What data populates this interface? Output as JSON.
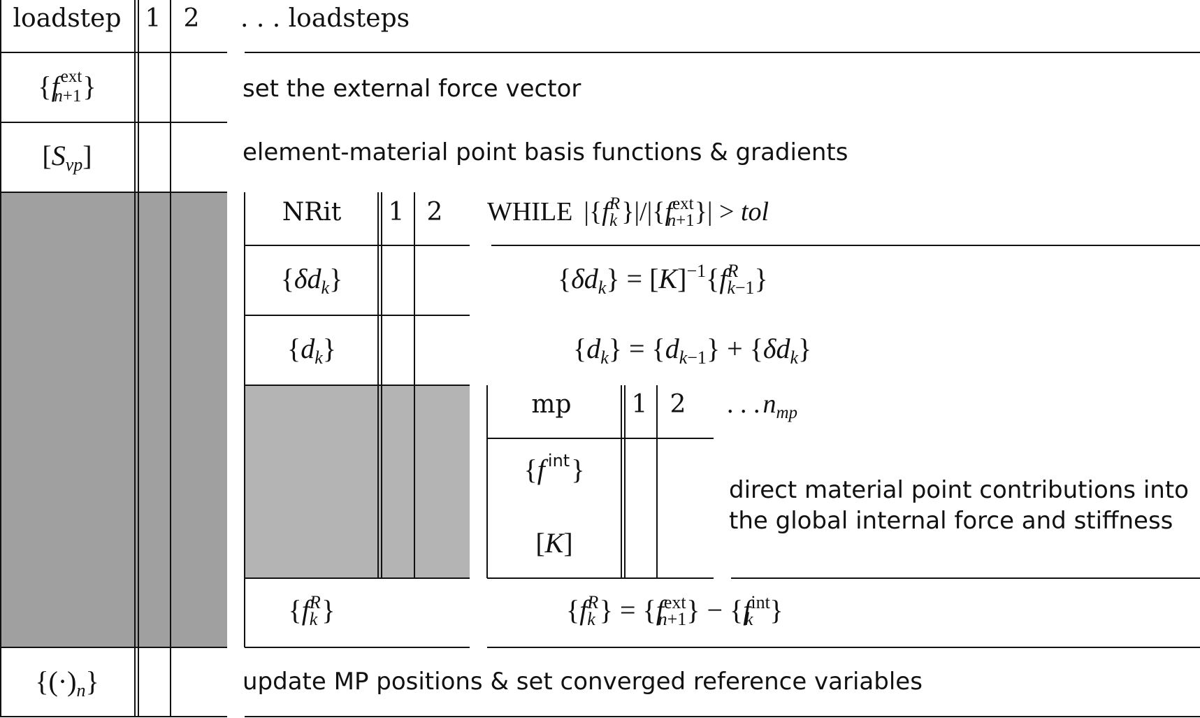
{
  "outer": {
    "header": "loadstep",
    "col1": "1",
    "col2": "2",
    "more": ". . . loadsteps",
    "rows": [
      {
        "label_id": "fext",
        "description": "set the external force vector"
      },
      {
        "label_id": "svp",
        "description": "element-material point basis functions & gradients"
      },
      {
        "label_id": "update",
        "description": "update MP positions & set converged reference variables"
      }
    ]
  },
  "inner": {
    "header": "NRit",
    "col1": "1",
    "col2": "2",
    "while_word": "WHILE",
    "tol": "tol"
  },
  "mp": {
    "header": "mp",
    "col1": "1",
    "col2": "2",
    "more": ". . .",
    "more_var": "n",
    "more_sub": "mp",
    "line1": "direct material point contributions into",
    "line2": "the global internal force and stiffness"
  },
  "colors": {
    "outer_shade": "#a0a0a0",
    "inner_shade": "#b4b4b4",
    "line": "#111111"
  }
}
